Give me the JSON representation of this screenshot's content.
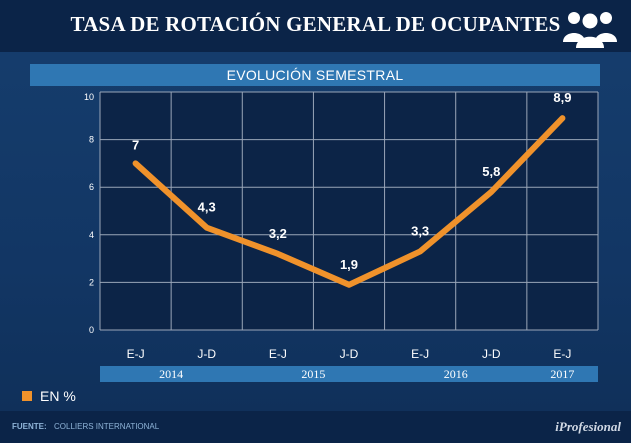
{
  "title": "TASA DE ROTACIÓN GENERAL DE OCUPANTES",
  "header_icon": "people-group-icon",
  "chart_data": {
    "type": "line",
    "title": "EVOLUCIÓN SEMESTRAL",
    "categories": [
      "E-J",
      "J-D",
      "E-J",
      "J-D",
      "E-J",
      "J-D",
      "E-J"
    ],
    "years": [
      {
        "label": "2014",
        "start": 0,
        "end": 1
      },
      {
        "label": "2015",
        "start": 2,
        "end": 3
      },
      {
        "label": "2016",
        "start": 4,
        "end": 5
      },
      {
        "label": "2017",
        "start": 6,
        "end": 6
      }
    ],
    "series": [
      {
        "name": "EN %",
        "values": [
          7,
          4.3,
          3.2,
          1.9,
          3.3,
          5.8,
          8.9
        ],
        "labels": [
          "7",
          "4,3",
          "3,2",
          "1,9",
          "3,3",
          "5,8",
          "8,9"
        ],
        "color": "#f0922b"
      }
    ],
    "ylim": [
      0,
      10
    ],
    "yticks": [
      0,
      2,
      4,
      6,
      8,
      10
    ],
    "grid": true,
    "legend": "bottom-left"
  },
  "legend_label": "EN %",
  "footer": {
    "source_label": "FUENTE:",
    "source_text": "COLLIERS INTERNATIONAL",
    "brand": "iProfesional"
  }
}
